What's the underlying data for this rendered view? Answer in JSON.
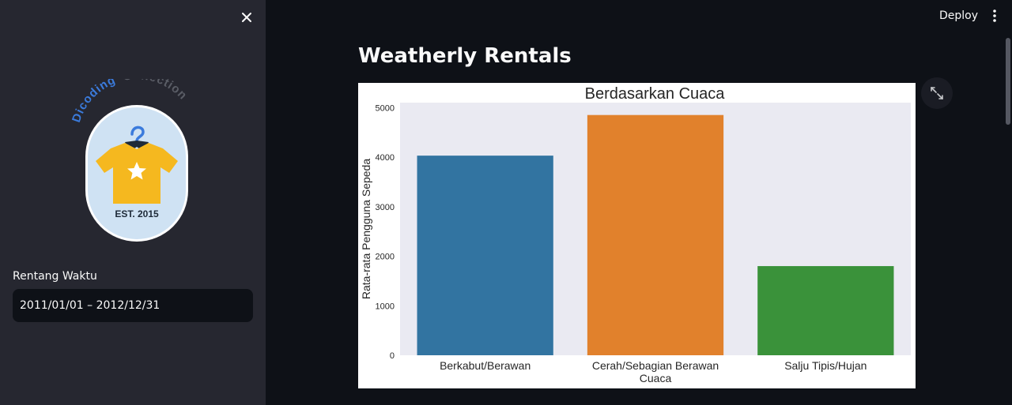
{
  "sidebar": {
    "logo_text_blue": "Dicoding",
    "logo_text_gray": "Collection",
    "logo_est": "EST. 2015",
    "date_label": "Rentang Waktu",
    "date_value": "2011/01/01 – 2012/12/31"
  },
  "header": {
    "deploy_label": "Deploy"
  },
  "main": {
    "title": "Weatherly Rentals"
  },
  "colors": {
    "sidebar_bg": "#262730",
    "main_bg": "#0e1117",
    "bar_blue": "#3274a1",
    "bar_orange": "#e1812c",
    "bar_green": "#3a923a",
    "plot_bg": "#eaeaf2"
  },
  "chart_data": {
    "type": "bar",
    "title": "Berdasarkan Cuaca",
    "xlabel": "",
    "ylabel": "Rata-rata Pengguna Sepeda",
    "categories": [
      "Berkabut/Berawan",
      "Cerah/Sebagian Berawan Cuaca",
      "Salju Tipis/Hujan"
    ],
    "category_lines": [
      [
        "Berkabut/Berawan"
      ],
      [
        "Cerah/Sebagian Berawan",
        "Cuaca"
      ],
      [
        "Salju Tipis/Hujan"
      ]
    ],
    "values": [
      4030,
      4850,
      1800
    ],
    "colors": [
      "#3274a1",
      "#e1812c",
      "#3a923a"
    ],
    "yticks": [
      0,
      1000,
      2000,
      3000,
      4000,
      5000
    ],
    "ylim": [
      0,
      5100
    ],
    "grid": false,
    "legend": "none"
  }
}
